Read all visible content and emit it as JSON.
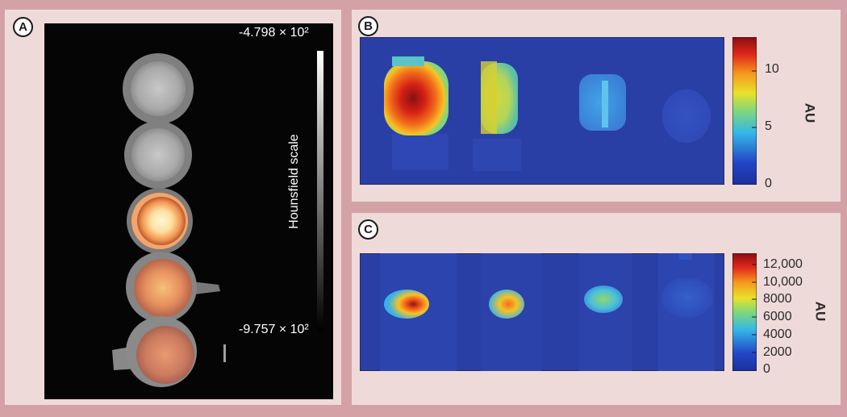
{
  "panels": {
    "a": {
      "letter": "A",
      "colorbar_label": "Hounsfield scale",
      "colorbar_max": "-4.798 × 10²",
      "colorbar_min": "-9.757 × 10²"
    },
    "b": {
      "letter": "B",
      "colorbar_ticks": [
        "10",
        "5",
        "0"
      ],
      "colorbar_label": "AU",
      "colormap": "jet"
    },
    "c": {
      "letter": "C",
      "colorbar_ticks": [
        "12,000",
        "10,000",
        "8000",
        "6000",
        "4000",
        "2000",
        "0"
      ],
      "colorbar_label": "AU",
      "colormap": "jet"
    }
  },
  "colors": {
    "frame": "#d4a2a6",
    "panel_bg": "#efdada",
    "heatmap_bg": "#2a3fa6"
  }
}
